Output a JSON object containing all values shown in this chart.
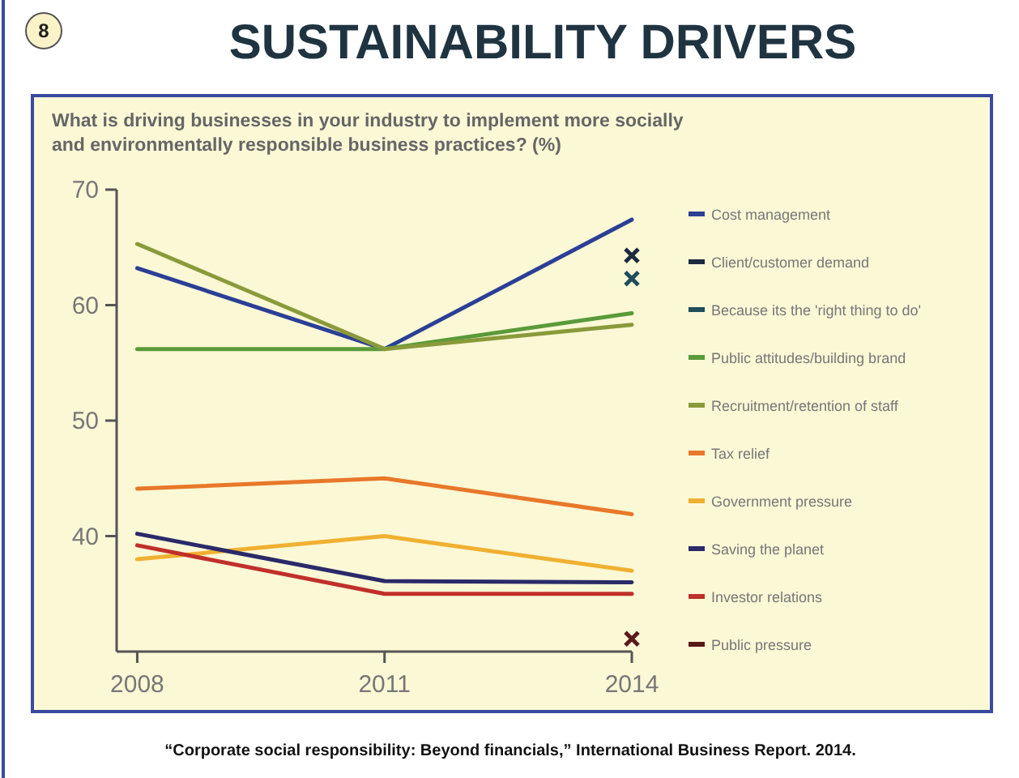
{
  "chart_data": {
    "type": "line",
    "title": "SUSTAINABILITY DRIVERS",
    "subtitle": "What is driving businesses in your industry to implement more socially and environmentally responsible business practices? (%)",
    "annotations": [
      "8",
      "“Corporate social responsibility: Beyond financials,” International Business Report. 2014."
    ],
    "x": [
      2008,
      2011,
      2014
    ],
    "xlim": [
      2007.75,
      2014
    ],
    "xticks": [
      2008,
      2011,
      2014
    ],
    "ylim": [
      30,
      70
    ],
    "yticks": [
      40,
      50,
      60,
      70
    ],
    "grid": false,
    "legend": "right",
    "marker": "none",
    "line_style": "solid",
    "series": [
      {
        "name": "Cost management",
        "color": "#2b3f96",
        "values": [
          63.2,
          56.2,
          67.4
        ]
      },
      {
        "name": "Client/customer demand",
        "color": "#1c2b40",
        "type": "scatter",
        "marker": "cross",
        "values": [
          null,
          null,
          64.3
        ]
      },
      {
        "name": "Because its the 'right thing to do'",
        "color": "#1f4d5a",
        "type": "scatter",
        "marker": "cross",
        "values": [
          null,
          null,
          62.3
        ]
      },
      {
        "name": "Public attitudes/building brand",
        "color": "#5a9a3a",
        "values": [
          56.2,
          56.2,
          59.3
        ]
      },
      {
        "name": "Recruitment/retention of staff",
        "color": "#8a9a3a",
        "values": [
          65.3,
          56.2,
          58.3
        ]
      },
      {
        "name": "Tax relief",
        "color": "#e8782a",
        "values": [
          44.1,
          45,
          41.9
        ]
      },
      {
        "name": "Government pressure",
        "color": "#f0b030",
        "values": [
          38,
          40,
          37
        ]
      },
      {
        "name": "Saving the planet",
        "color": "#2a2a6a",
        "values": [
          40.2,
          36.1,
          36
        ]
      },
      {
        "name": "Investor relations",
        "color": "#c0302a",
        "values": [
          39.2,
          35,
          35
        ]
      },
      {
        "name": "Public pressure",
        "color": "#5a1a1a",
        "type": "scatter",
        "marker": "cross",
        "values": [
          null,
          null,
          31.1
        ]
      }
    ]
  }
}
